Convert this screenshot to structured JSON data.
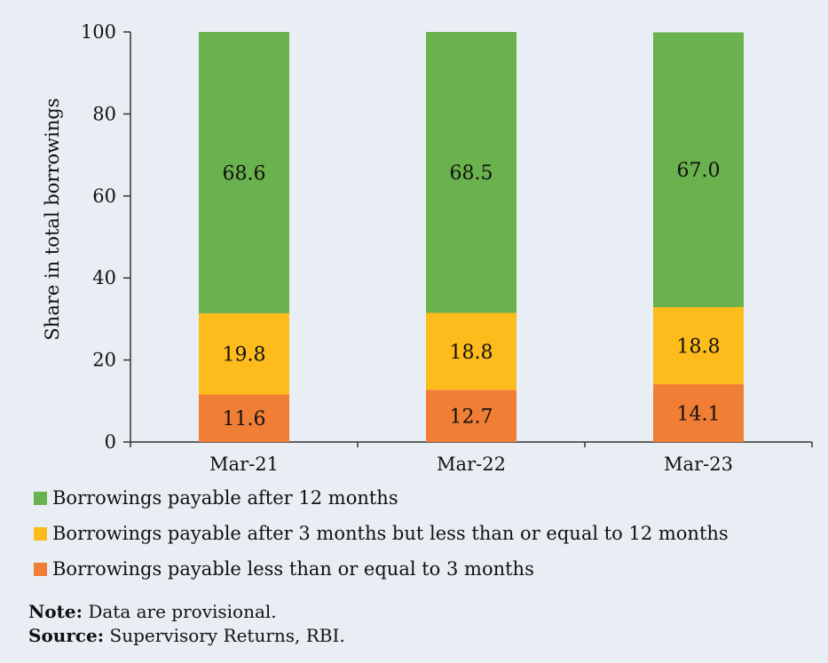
{
  "chart_data": {
    "type": "bar",
    "stacked": true,
    "categories": [
      "Mar-21",
      "Mar-22",
      "Mar-23"
    ],
    "series": [
      {
        "name": "Borrowings payable less than or equal to 3 months",
        "values": [
          11.6,
          12.7,
          14.1
        ],
        "color": "#f07e35"
      },
      {
        "name": "Borrowings payable after 3 months but less than or equal to 12 months",
        "values": [
          19.8,
          18.8,
          18.8
        ],
        "color": "#fdbb1c"
      },
      {
        "name": "Borrowings payable after 12 months",
        "values": [
          68.6,
          68.5,
          67.0
        ],
        "color": "#6ab24d"
      }
    ],
    "ylabel": "Share in total borrowings",
    "ylim": [
      0,
      100
    ],
    "yticks": [
      0,
      20,
      40,
      60,
      80,
      100
    ],
    "grid": false,
    "legend": "bottom"
  },
  "legend_items": [
    {
      "label": "Borrowings payable after 12 months",
      "color": "#6ab24d"
    },
    {
      "label": "Borrowings payable after 3 months but less than or equal to 12 months",
      "color": "#fdbb1c"
    },
    {
      "label": "Borrowings payable less than or equal to 3 months",
      "color": "#f07e35"
    }
  ],
  "note": {
    "label": "Note:",
    "text": "Data are provisional."
  },
  "source": {
    "label": "Source:",
    "text": "Supervisory Returns, RBI."
  }
}
